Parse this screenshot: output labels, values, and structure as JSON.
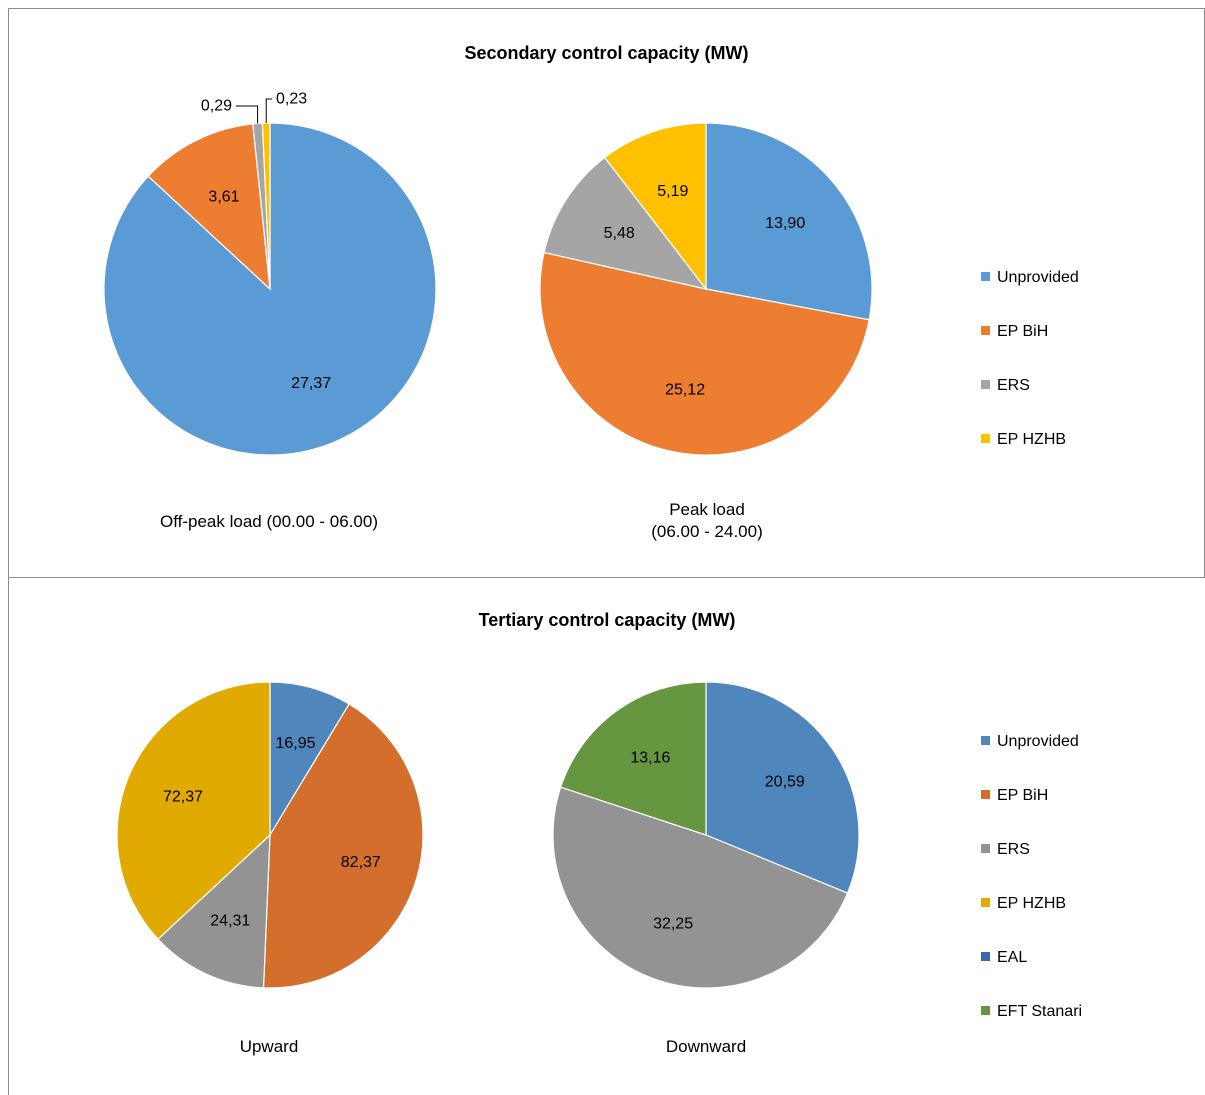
{
  "chart_data": [
    {
      "type": "pie",
      "title": "Secondary control capacity (MW)",
      "subcharts": [
        {
          "caption": "Off-peak load  (00.00 - 06.00)",
          "slices": [
            {
              "name": "Unprovided",
              "value": 27.37,
              "label": "27,37",
              "color": "#5b9bd5"
            },
            {
              "name": "EP BiH",
              "value": 3.61,
              "label": "3,61",
              "color": "#ed7d31"
            },
            {
              "name": "ERS",
              "value": 0.29,
              "label": "0,29",
              "color": "#a5a5a5"
            },
            {
              "name": "EP HZHB",
              "value": 0.23,
              "label": "0,23",
              "color": "#ffc000"
            }
          ]
        },
        {
          "caption": "Peak load (06.00 - 24.00)",
          "caption_lines": [
            "Peak load",
            "(06.00 - 24.00)"
          ],
          "slices": [
            {
              "name": "Unprovided",
              "value": 13.9,
              "label": "13,90",
              "color": "#5b9bd5"
            },
            {
              "name": "EP BiH",
              "value": 25.12,
              "label": "25,12",
              "color": "#ed7d31"
            },
            {
              "name": "ERS",
              "value": 5.48,
              "label": "5,48",
              "color": "#a5a5a5"
            },
            {
              "name": "EP HZHB",
              "value": 5.19,
              "label": "5,19",
              "color": "#ffc000"
            }
          ]
        }
      ],
      "legend": [
        {
          "name": "Unprovided",
          "color": "#5b9bd5"
        },
        {
          "name": "EP BiH",
          "color": "#ed7d31"
        },
        {
          "name": "ERS",
          "color": "#a5a5a5"
        },
        {
          "name": "EP HZHB",
          "color": "#ffc000"
        }
      ],
      "legend_position": "right"
    },
    {
      "type": "pie",
      "title": "Tertiary control capacity (MW)",
      "subcharts": [
        {
          "caption": "Upward",
          "slices": [
            {
              "name": "Unprovided",
              "value": 16.95,
              "label": "16,95",
              "color": "#4f87bd"
            },
            {
              "name": "EP BiH",
              "value": 82.37,
              "label": "82,37",
              "color": "#d36e2c"
            },
            {
              "name": "ERS",
              "value": 24.31,
              "label": "24,31",
              "color": "#939393"
            },
            {
              "name": "EP HZHB",
              "value": 72.37,
              "label": "72,37",
              "color": "#e0aa00"
            }
          ]
        },
        {
          "caption": "Downward",
          "slices": [
            {
              "name": "Unprovided",
              "value": 20.59,
              "label": "20,59",
              "color": "#4f87bd"
            },
            {
              "name": "ERS",
              "value": 32.25,
              "label": "32,25",
              "color": "#939393"
            },
            {
              "name": "EFT Stanari",
              "value": 13.16,
              "label": "13,16",
              "color": "#66963f"
            }
          ]
        }
      ],
      "legend": [
        {
          "name": "Unprovided",
          "color": "#4f87bd"
        },
        {
          "name": "EP BiH",
          "color": "#d36e2c"
        },
        {
          "name": "ERS",
          "color": "#939393"
        },
        {
          "name": "EP HZHB",
          "color": "#e0aa00"
        },
        {
          "name": "EAL",
          "color": "#3a69b0"
        },
        {
          "name": "EFT Stanari",
          "color": "#66963f"
        }
      ],
      "legend_position": "right"
    }
  ]
}
